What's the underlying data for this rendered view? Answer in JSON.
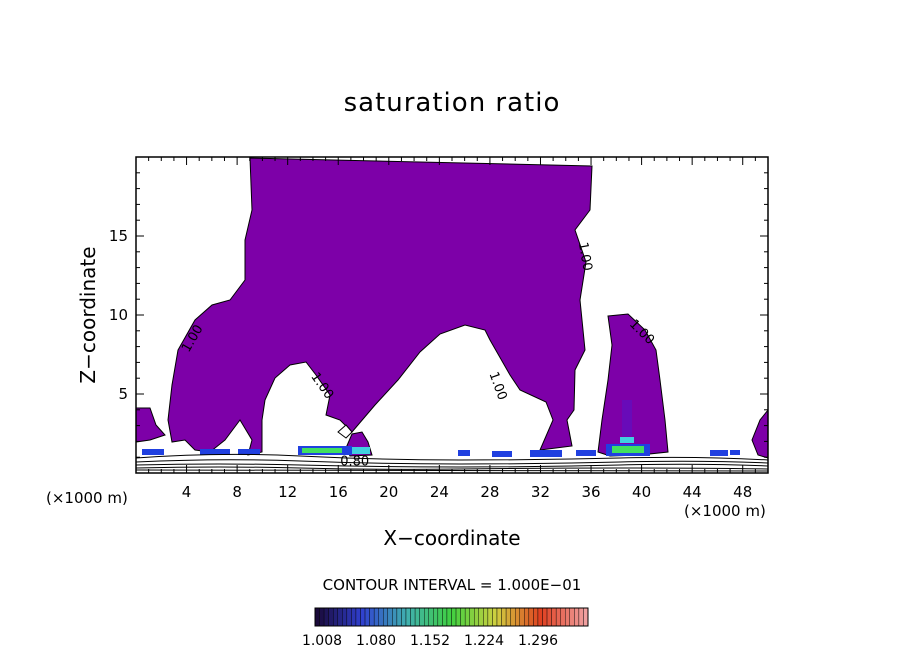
{
  "chart_data": {
    "type": "heatmap",
    "title": "saturation ratio",
    "xlabel": "X−coordinate",
    "ylabel": "Z−coordinate",
    "x_unit_label": "(×1000 m)",
    "xlim": [
      0,
      50
    ],
    "ylim": [
      0,
      20
    ],
    "x_ticks": [
      4,
      8,
      12,
      16,
      20,
      24,
      28,
      32,
      36,
      40,
      44,
      48
    ],
    "y_ticks": [
      5,
      10,
      15
    ],
    "contour_interval_label": "CONTOUR INTERVAL = 1.000E−01",
    "contour_labels": [
      {
        "text": "1.00",
        "x": 4.5,
        "y": 8.5,
        "angle": -60
      },
      {
        "text": "1.00",
        "x": 35.5,
        "y": 13.7,
        "angle": 80
      },
      {
        "text": "1.00",
        "x": 14.7,
        "y": 5.5,
        "angle": 55
      },
      {
        "text": "1.00",
        "x": 28.6,
        "y": 5.5,
        "angle": 70
      },
      {
        "text": "1.00",
        "x": 40.0,
        "y": 8.9,
        "angle": 45
      },
      {
        "text": "0.80",
        "x": 17.3,
        "y": 0.7,
        "angle": 0
      }
    ],
    "colorbar": {
      "tick_labels": [
        "1.008",
        "1.080",
        "1.152",
        "1.224",
        "1.296"
      ],
      "colors": [
        "#1a0a3a",
        "#3040d0",
        "#40b0b0",
        "#40d040",
        "#d0d040",
        "#e04020",
        "#f0a0a0"
      ]
    },
    "colors": {
      "fill": "#7d00a8",
      "dense_cyan": "#40d0e0",
      "dense_green": "#40e060",
      "dense_blue": "#2040e0"
    }
  }
}
